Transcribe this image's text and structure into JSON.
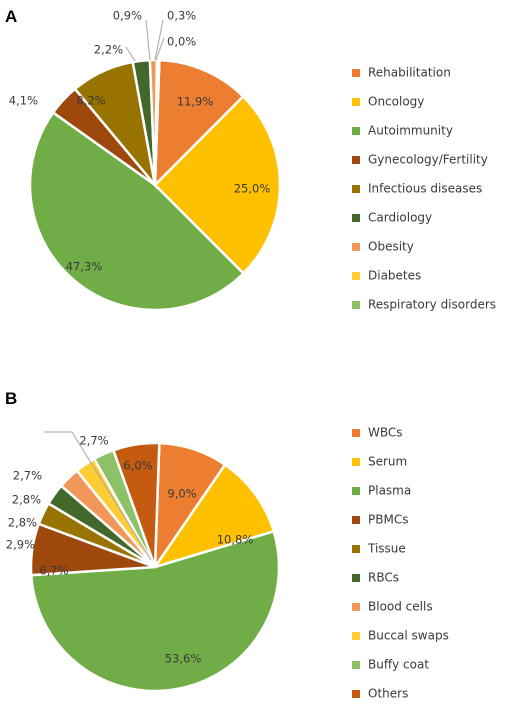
{
  "chart_data": [
    {
      "type": "pie",
      "panel": "A",
      "slices": [
        {
          "label": "Rehabilitation",
          "value": 11.9,
          "display": "11,9%",
          "color": "#ED7D31"
        },
        {
          "label": "Oncology",
          "value": 25.0,
          "display": "25,0%",
          "color": "#FFC000"
        },
        {
          "label": "Autoimmunity",
          "value": 47.3,
          "display": "47,3%",
          "color": "#70AD47"
        },
        {
          "label": "Gynecology/Fertility",
          "value": 4.1,
          "display": "4,1%",
          "color": "#9E480E"
        },
        {
          "label": "Infectious diseases",
          "value": 8.2,
          "display": "8,2%",
          "color": "#997300"
        },
        {
          "label": "Cardiology",
          "value": 2.2,
          "display": "2,2%",
          "color": "#43682B"
        },
        {
          "label": "Obesity",
          "value": 0.9,
          "display": "0,9%",
          "color": "#F1975A"
        },
        {
          "label": "Diabetes",
          "value": 0.3,
          "display": "0,3%",
          "color": "#FFCD33"
        },
        {
          "label": "Respiratory disorders",
          "value": 0.0,
          "display": "0,0%",
          "color": "#8CC168"
        }
      ]
    },
    {
      "type": "pie",
      "panel": "B",
      "slices": [
        {
          "label": "WBCs",
          "value": 9.0,
          "display": "9,0%",
          "color": "#ED7D31"
        },
        {
          "label": "Serum",
          "value": 10.8,
          "display": "10,8%",
          "color": "#FFC000"
        },
        {
          "label": "Plasma",
          "value": 53.6,
          "display": "53,6%",
          "color": "#70AD47"
        },
        {
          "label": "PBMCs",
          "value": 6.7,
          "display": "6,7%",
          "color": "#9E480E"
        },
        {
          "label": "Tissue",
          "value": 2.9,
          "display": "2,9%",
          "color": "#997300"
        },
        {
          "label": "RBCs",
          "value": 2.8,
          "display": "2,8%",
          "color": "#43682B"
        },
        {
          "label": "Blood cells",
          "value": 2.8,
          "display": "2,8%",
          "color": "#F1975A"
        },
        {
          "label": "Buccal swaps",
          "value": 2.7,
          "display": "2,7%",
          "color": "#FFCD33"
        },
        {
          "label": "Buffy coat",
          "value": 2.7,
          "display": "2,7%",
          "color": "#8CC168"
        },
        {
          "label": "Others",
          "value": 6.0,
          "display": "6,0%",
          "color": "#C55A11"
        }
      ]
    }
  ]
}
